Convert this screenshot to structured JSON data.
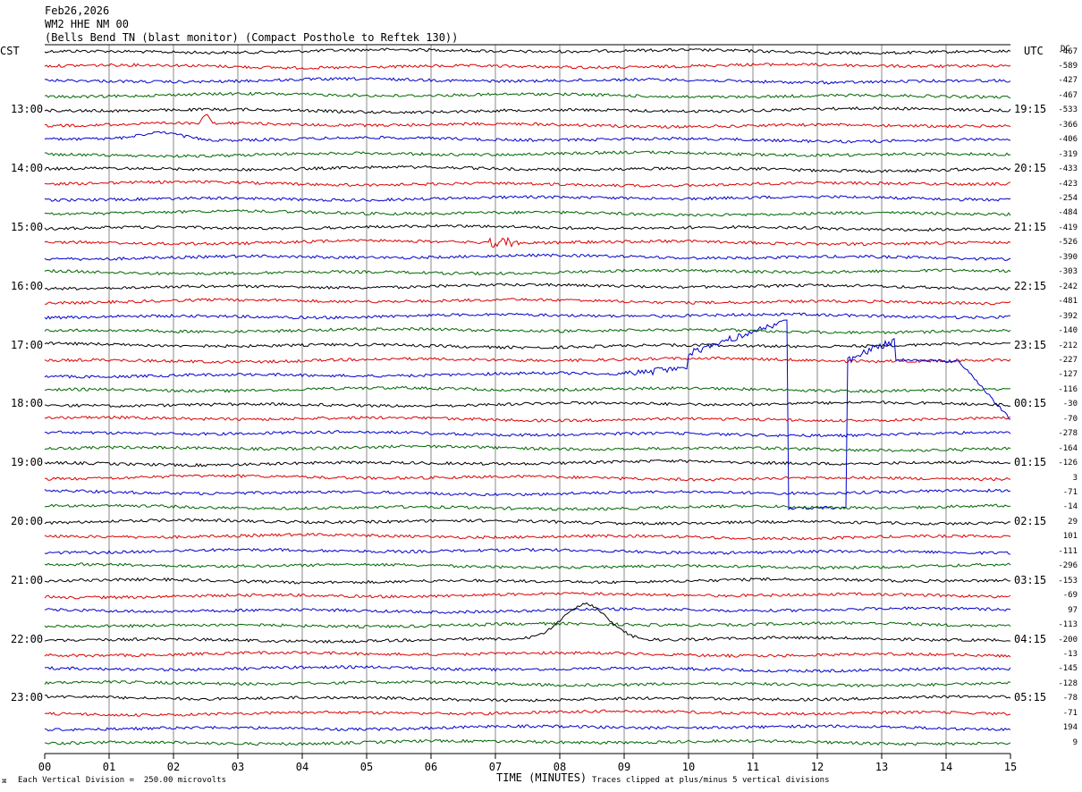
{
  "header": {
    "date": "Feb26,2026",
    "station": "WM2 HHE NM 00",
    "site": "(Bells Bend TN (blast monitor) (Compact Posthole to Reftek 130))"
  },
  "axis": {
    "left_tz": "CST",
    "right_tz": "UTC",
    "dc_label": "DC",
    "xlabel": "TIME (MINUTES)",
    "scale_note": "Each Vertical Division =  250.00 microvolts",
    "clip_note": "Traces clipped at plus/minus 5 vertical divisions",
    "corner_mark": "⌘"
  },
  "colors": {
    "trace_cycle": [
      "#000000",
      "#dd0000",
      "#0000cc",
      "#006600"
    ],
    "grid": "#888888"
  },
  "chart_data": {
    "type": "line",
    "x_ticks": [
      "00",
      "01",
      "02",
      "03",
      "04",
      "05",
      "06",
      "07",
      "08",
      "09",
      "10",
      "11",
      "12",
      "13",
      "14",
      "15"
    ],
    "xlim": [
      0,
      15
    ],
    "left_time_labels": [
      "13:00",
      "14:00",
      "15:00",
      "16:00",
      "17:00",
      "18:00",
      "19:00",
      "20:00",
      "21:00",
      "22:00",
      "23:00"
    ],
    "right_time_labels": [
      "19:15",
      "20:15",
      "21:15",
      "22:15",
      "23:15",
      "00:15",
      "01:15",
      "02:15",
      "03:15",
      "04:15",
      "05:15"
    ],
    "dc_offsets": [
      "-467",
      "-589",
      "-427",
      "-467",
      "-533",
      "-366",
      "-406",
      "-319",
      "-433",
      "-423",
      "-254",
      "-484",
      "-419",
      "-526",
      "-390",
      "-303",
      "-242",
      "-481",
      "-392",
      "-140",
      "-212",
      "-227",
      "-127",
      "-116",
      "-30",
      "-70",
      "-278",
      "-164",
      "-126",
      "3",
      "-71",
      "-14",
      "29",
      "101",
      "-111",
      "-296",
      "-153",
      "-69",
      "97",
      "-113",
      "-200",
      "-13",
      "-145",
      "-128",
      "-78",
      "-71",
      "194",
      "9"
    ],
    "events": [
      {
        "trace": 5,
        "minute": 2.5,
        "kind": "spike",
        "amp": 12
      },
      {
        "trace": 6,
        "minute": 1.8,
        "kind": "bump",
        "amp": 8
      },
      {
        "trace": 13,
        "minute": 7.1,
        "kind": "burst",
        "amp": 7
      },
      {
        "trace": 22,
        "minute": 11.0,
        "kind": "excursion"
      },
      {
        "trace": 40,
        "minute": 8.4,
        "kind": "bump",
        "amp": 40
      }
    ]
  }
}
